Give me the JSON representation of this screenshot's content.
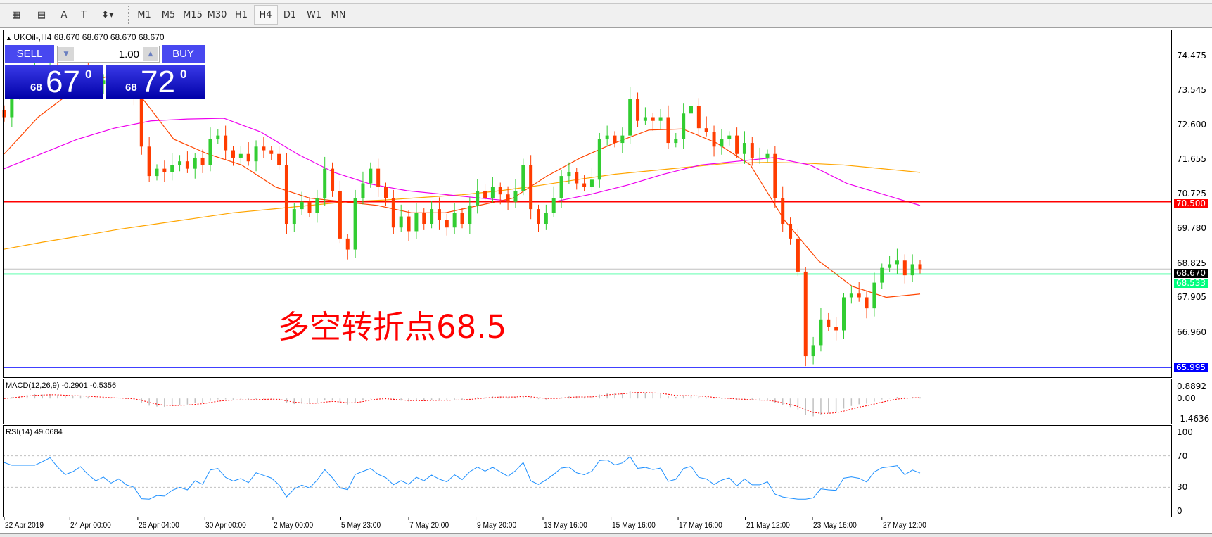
{
  "toolbar": {
    "tools": [
      {
        "icon": "expert-grid-icon",
        "glyph": "▦"
      },
      {
        "icon": "fib-grid-icon",
        "glyph": "▤"
      },
      {
        "icon": "text-icon",
        "glyph": "A"
      },
      {
        "icon": "text-label-icon",
        "glyph": "T"
      },
      {
        "icon": "arrows-icon",
        "glyph": "⬍▾"
      }
    ],
    "timeframes": [
      "M1",
      "M5",
      "M15",
      "M30",
      "H1",
      "H4",
      "D1",
      "W1",
      "MN"
    ],
    "active_timeframe": "H4"
  },
  "chart": {
    "info": "UKOil-,H4  68.670 68.670 68.670 68.670",
    "trade": {
      "sell": "SELL",
      "buy": "BUY",
      "lot": "1.00",
      "sell_small": "68",
      "sell_big": "67",
      "sell_sup": "0",
      "buy_small": "68",
      "buy_big": "72",
      "buy_sup": "0"
    },
    "annotation": "多空转折点68.5",
    "macd_label": "MACD(12,26,9) -0.2901 -0.5356",
    "rsi_label": "RSI(14) 49.0684",
    "price_axis": [
      "74.475",
      "73.545",
      "72.600",
      "71.655",
      "70.725",
      "69.780",
      "68.825",
      "67.905",
      "66.960"
    ],
    "macd_axis": [
      "0.8892",
      "0.00",
      "-1.4636"
    ],
    "rsi_axis": [
      "100",
      "70",
      "30",
      "0"
    ],
    "time_axis": [
      "22 Apr 2019",
      "24 Apr 00:00",
      "26 Apr 04:00",
      "30 Apr 00:00",
      "2 May 00:00",
      "5 May 23:00",
      "7 May 20:00",
      "9 May 20:00",
      "13 May 16:00",
      "15 May 16:00",
      "17 May 16:00",
      "21 May 12:00",
      "23 May 16:00",
      "27 May 12:00"
    ],
    "levels": [
      {
        "value": 70.5,
        "label": "70.500",
        "color": "#ff0000"
      },
      {
        "value": 68.533,
        "label": "68.533",
        "color": "#00ff7f"
      },
      {
        "value": 65.995,
        "label": "65.995",
        "color": "#0000ff"
      },
      {
        "value": 68.67,
        "label": "68.670",
        "color": "#000000",
        "line": "#c0c0c0"
      }
    ],
    "colors": {
      "bull": "#32cd32",
      "bear": "#ff3c00",
      "ma_fast": "#ff4500",
      "ma_mid": "#ee00ee",
      "ma_slow": "#ffa500",
      "rsi": "#1e90ff",
      "macd_signal": "#ff0000",
      "macd_hist": "#c0c0c0"
    }
  },
  "chart_data": {
    "type": "candlestick",
    "symbol": "UKOil-",
    "timeframe": "H4",
    "ylim": [
      65.9,
      74.6
    ],
    "close": [
      72.8,
      73.5,
      73.8,
      74.0,
      74.1,
      73.9,
      74.2,
      74.0,
      73.8,
      73.9,
      74.1,
      73.9,
      73.7,
      73.8,
      73.6,
      73.7,
      73.5,
      73.4,
      72.0,
      71.2,
      71.4,
      71.3,
      71.5,
      71.6,
      71.4,
      71.7,
      71.5,
      72.2,
      72.3,
      71.9,
      71.7,
      71.8,
      71.6,
      72.0,
      71.9,
      71.8,
      71.5,
      69.9,
      70.3,
      70.5,
      70.2,
      70.6,
      71.4,
      70.8,
      69.5,
      69.2,
      70.6,
      71.0,
      71.4,
      70.9,
      70.6,
      69.8,
      70.1,
      69.7,
      70.2,
      69.9,
      70.3,
      70.0,
      69.8,
      70.2,
      69.9,
      70.4,
      70.8,
      70.6,
      70.9,
      70.7,
      70.5,
      70.8,
      71.5,
      70.3,
      69.9,
      70.2,
      70.6,
      71.2,
      71.3,
      71.0,
      70.9,
      71.1,
      72.2,
      72.3,
      72.1,
      72.3,
      73.3,
      72.7,
      72.8,
      72.7,
      72.8,
      72.1,
      72.2,
      72.9,
      73.1,
      72.5,
      72.4,
      72.0,
      72.2,
      72.3,
      71.8,
      72.1,
      71.7,
      71.7,
      71.8,
      70.6,
      69.9,
      69.5,
      68.6,
      66.3,
      66.6,
      67.3,
      67.1,
      67.0,
      67.9,
      68.0,
      67.9,
      67.6,
      68.3,
      68.7,
      68.8,
      68.9,
      68.5,
      68.8,
      68.67
    ],
    "ma_fast": [
      71.8,
      72.8,
      73.5,
      73.9,
      73.4,
      72.2,
      71.8,
      71.5,
      70.9,
      70.6,
      70.5,
      70.4,
      70.2,
      70.2,
      70.4,
      70.6,
      71.2,
      71.7,
      72.1,
      72.45,
      72.48,
      72.1,
      71.5,
      70.0,
      68.9,
      68.2,
      67.9,
      67.99
    ],
    "ma_mid": [
      71.4,
      71.8,
      72.2,
      72.5,
      72.7,
      72.75,
      72.77,
      72.4,
      71.8,
      71.3,
      70.98,
      70.8,
      70.7,
      70.6,
      70.5,
      70.5,
      70.7,
      70.95,
      71.25,
      71.5,
      71.6,
      71.7,
      71.5,
      71.0,
      70.7,
      70.4
    ],
    "ma_slow": [
      69.21,
      69.4,
      69.57,
      69.75,
      69.9,
      70.05,
      70.2,
      70.3,
      70.4,
      70.5,
      70.55,
      70.62,
      70.69,
      70.8,
      70.94,
      71.1,
      71.25,
      71.35,
      71.45,
      71.55,
      71.57,
      71.55,
      71.5,
      71.4,
      71.3
    ],
    "rsi_levels": [
      70,
      30
    ]
  }
}
